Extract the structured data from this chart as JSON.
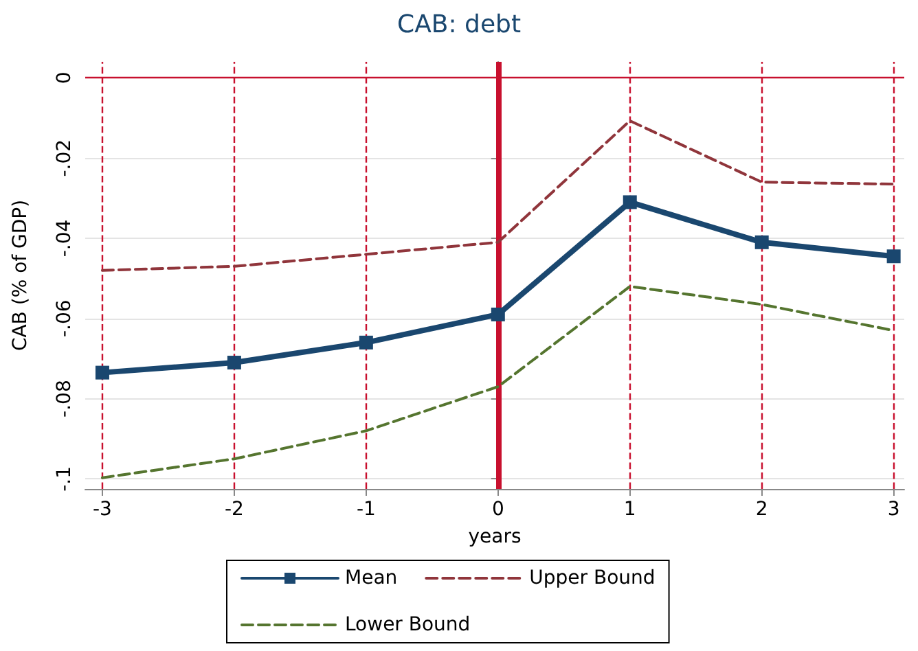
{
  "chart_data": {
    "type": "line",
    "title": "CAB: debt",
    "xlabel": "years",
    "ylabel": "CAB (% of GDP)",
    "x": [
      -3,
      -2,
      -1,
      0,
      1,
      2,
      3
    ],
    "series": [
      {
        "name": "Mean",
        "color": "#1a476f",
        "marker": "square",
        "line_style": "solid",
        "values": [
          -0.0735,
          -0.071,
          -0.066,
          -0.059,
          -0.031,
          -0.041,
          -0.0445
        ]
      },
      {
        "name": "Upper Bound",
        "color": "#90353b",
        "marker": "none",
        "line_style": "dashed",
        "values": [
          -0.048,
          -0.047,
          -0.044,
          -0.041,
          -0.0107,
          -0.026,
          -0.0265
        ]
      },
      {
        "name": "Lower Bound",
        "color": "#55752f",
        "marker": "none",
        "line_style": "dashed",
        "values": [
          -0.0997,
          -0.095,
          -0.088,
          -0.077,
          -0.052,
          -0.0565,
          -0.063
        ]
      }
    ],
    "xlim": [
      -3.13,
      3.08
    ],
    "xticks": [
      -3,
      -2,
      -1,
      0,
      1,
      2,
      3
    ],
    "ylim": [
      -0.1025,
      0.004
    ],
    "yticks": [
      {
        "value": -0.1,
        "label": "-.1"
      },
      {
        "value": -0.08,
        "label": "-.08"
      },
      {
        "value": -0.06,
        "label": "-.06"
      },
      {
        "value": -0.04,
        "label": "-.04"
      },
      {
        "value": -0.02,
        "label": "-.02"
      },
      {
        "value": 0,
        "label": "0"
      }
    ],
    "ref_lines": [
      {
        "axis": "y",
        "value": 0,
        "color": "#c8102e",
        "line_style": "solid"
      },
      {
        "axis": "x",
        "value": 0,
        "color": "#c8102e",
        "line_style": "solid"
      },
      {
        "axis": "x",
        "value": -3,
        "color": "#c8102e",
        "line_style": "dashed"
      },
      {
        "axis": "x",
        "value": -2,
        "color": "#c8102e",
        "line_style": "dashed"
      },
      {
        "axis": "x",
        "value": -1,
        "color": "#c8102e",
        "line_style": "dashed"
      },
      {
        "axis": "x",
        "value": 1,
        "color": "#c8102e",
        "line_style": "dashed"
      },
      {
        "axis": "x",
        "value": 2,
        "color": "#c8102e",
        "line_style": "dashed"
      },
      {
        "axis": "x",
        "value": 3,
        "color": "#c8102e",
        "line_style": "dashed"
      }
    ],
    "grid": "y",
    "legend": "bottom"
  }
}
